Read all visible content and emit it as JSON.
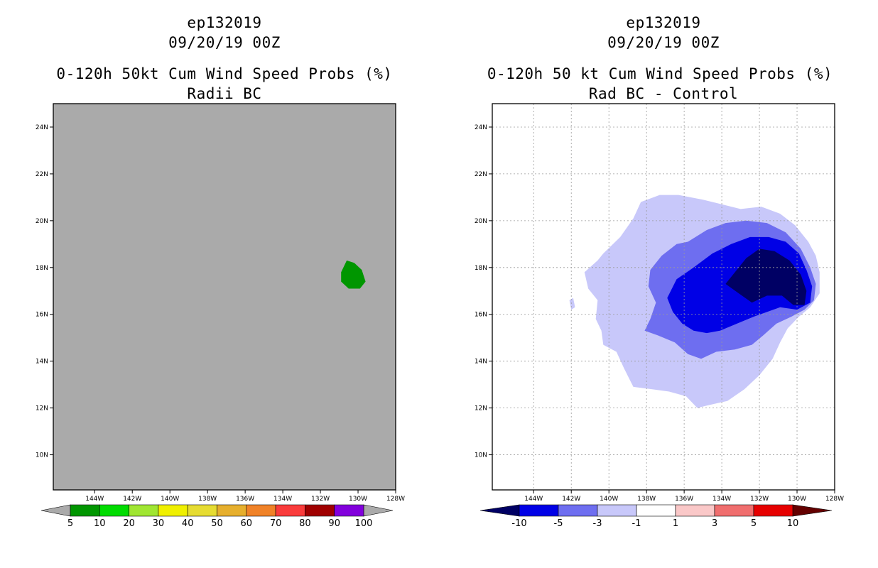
{
  "chart_data": [
    {
      "type": "heatmap",
      "id": "left",
      "title_lines": [
        "ep132019",
        "09/20/19 00Z",
        "0-120h 50kt Cum Wind Speed Probs (%)",
        "Radii BC"
      ],
      "x_ticks": [
        "144W",
        "142W",
        "140W",
        "138W",
        "136W",
        "134W",
        "132W",
        "130W",
        "128W"
      ],
      "y_ticks": [
        "24N",
        "22N",
        "20N",
        "18N",
        "16N",
        "14N",
        "12N",
        "10N"
      ],
      "xlim": [
        -146.2,
        -128
      ],
      "ylim": [
        8.5,
        25
      ],
      "grid": false,
      "background_color": "#aaaaaa",
      "colorbar": {
        "labels": [
          "5",
          "10",
          "20",
          "30",
          "40",
          "50",
          "60",
          "70",
          "80",
          "90",
          "100"
        ],
        "colors": [
          "#009600",
          "#00dc00",
          "#a0e632",
          "#f0f000",
          "#e6dc32",
          "#e6af2d",
          "#f08228",
          "#fa3c3c",
          "#a00000",
          "#8200dc"
        ],
        "under_color": "#aaaaaa",
        "over_color": "#aaaaaa"
      },
      "regions": [
        {
          "color": "#009600",
          "level": "5-10",
          "points": [
            [
              -130.9,
              17.8
            ],
            [
              -130.6,
              18.3
            ],
            [
              -130.2,
              18.2
            ],
            [
              -129.8,
              17.9
            ],
            [
              -129.6,
              17.4
            ],
            [
              -129.9,
              17.1
            ],
            [
              -130.5,
              17.1
            ],
            [
              -130.9,
              17.4
            ]
          ]
        }
      ]
    },
    {
      "type": "heatmap",
      "id": "right",
      "title_lines": [
        "ep132019",
        "09/20/19 00Z",
        "0-120h 50 kt Cum Wind Speed Probs (%)",
        "Rad BC - Control"
      ],
      "x_ticks": [
        "144W",
        "142W",
        "140W",
        "138W",
        "136W",
        "134W",
        "132W",
        "130W",
        "128W"
      ],
      "y_ticks": [
        "24N",
        "22N",
        "20N",
        "18N",
        "16N",
        "14N",
        "12N",
        "10N"
      ],
      "xlim": [
        -146.2,
        -128
      ],
      "ylim": [
        8.5,
        25
      ],
      "grid": true,
      "background_color": "#ffffff",
      "colorbar": {
        "labels": [
          "-10",
          "-5",
          "-3",
          "-1",
          "1",
          "3",
          "5",
          "10"
        ],
        "colors": [
          "#0000e6",
          "#6e6ef0",
          "#c8c8fa",
          "#ffffff",
          "#fac8c8",
          "#f06e6e",
          "#e60000"
        ],
        "under_color": "#000064",
        "over_color": "#640000"
      },
      "regions": [
        {
          "color": "#c8c8fa",
          "level": "-3 to -1",
          "points": [
            [
              -138.3,
              20.8
            ],
            [
              -137.3,
              21.1
            ],
            [
              -136.3,
              21.1
            ],
            [
              -135,
              20.9
            ],
            [
              -134,
              20.7
            ],
            [
              -133,
              20.5
            ],
            [
              -131.9,
              20.6
            ],
            [
              -130.9,
              20.3
            ],
            [
              -130.1,
              19.8
            ],
            [
              -129.4,
              19.1
            ],
            [
              -129,
              18.5
            ],
            [
              -128.8,
              17.8
            ],
            [
              -128.8,
              16.9
            ],
            [
              -129.3,
              16.3
            ],
            [
              -129.9,
              15.9
            ],
            [
              -130.5,
              15.4
            ],
            [
              -130.9,
              14.8
            ],
            [
              -131.3,
              14.1
            ],
            [
              -132,
              13.4
            ],
            [
              -132.8,
              12.8
            ],
            [
              -133.7,
              12.3
            ],
            [
              -134.8,
              12.1
            ],
            [
              -135.3,
              12.0
            ],
            [
              -135.9,
              12.5
            ],
            [
              -136.8,
              12.7
            ],
            [
              -137.7,
              12.8
            ],
            [
              -138.7,
              12.9
            ],
            [
              -139.2,
              13.7
            ],
            [
              -139.6,
              14.4
            ],
            [
              -140.3,
              14.7
            ],
            [
              -140.4,
              15.3
            ],
            [
              -140.7,
              15.8
            ],
            [
              -140.6,
              16.6
            ],
            [
              -141.1,
              17.1
            ],
            [
              -141.3,
              17.8
            ],
            [
              -140.6,
              18.3
            ],
            [
              -140.3,
              18.6
            ],
            [
              -139.4,
              19.3
            ],
            [
              -138.7,
              20.1
            ]
          ]
        },
        {
          "color": "#c8c8fa",
          "level": "-3 to -1",
          "points": [
            [
              -142.1,
              16.6
            ],
            [
              -141.9,
              16.7
            ],
            [
              -141.8,
              16.3
            ],
            [
              -142.0,
              16.2
            ]
          ]
        },
        {
          "color": "#6e6ef0",
          "level": "-5 to -3",
          "points": [
            [
              -136.4,
              19.0
            ],
            [
              -135.8,
              19.1
            ],
            [
              -134.8,
              19.6
            ],
            [
              -133.8,
              19.9
            ],
            [
              -132.7,
              20.0
            ],
            [
              -131.6,
              19.9
            ],
            [
              -130.6,
              19.5
            ],
            [
              -129.8,
              18.8
            ],
            [
              -129.3,
              18.0
            ],
            [
              -129.0,
              17.3
            ],
            [
              -129.1,
              16.6
            ],
            [
              -129.6,
              16.2
            ],
            [
              -130.3,
              15.9
            ],
            [
              -131.1,
              15.6
            ],
            [
              -131.8,
              15.1
            ],
            [
              -132.4,
              14.7
            ],
            [
              -133.3,
              14.5
            ],
            [
              -134.3,
              14.4
            ],
            [
              -135.1,
              14.1
            ],
            [
              -135.8,
              14.3
            ],
            [
              -136.5,
              14.8
            ],
            [
              -137.4,
              15.1
            ],
            [
              -138.1,
              15.3
            ],
            [
              -137.8,
              15.8
            ],
            [
              -137.5,
              16.5
            ],
            [
              -137.9,
              17.2
            ],
            [
              -137.8,
              17.9
            ],
            [
              -137.2,
              18.5
            ]
          ]
        },
        {
          "color": "#0000e6",
          "level": "-10 to -5",
          "points": [
            [
              -136.4,
              17.5
            ],
            [
              -135.5,
              18.0
            ],
            [
              -134.5,
              18.6
            ],
            [
              -133.5,
              19.0
            ],
            [
              -132.5,
              19.3
            ],
            [
              -131.5,
              19.3
            ],
            [
              -130.6,
              19.1
            ],
            [
              -129.9,
              18.6
            ],
            [
              -129.5,
              17.9
            ],
            [
              -129.2,
              17.2
            ],
            [
              -129.3,
              16.5
            ],
            [
              -130.0,
              16.2
            ],
            [
              -130.9,
              16.3
            ],
            [
              -131.6,
              16.1
            ],
            [
              -132.3,
              15.9
            ],
            [
              -133.2,
              15.6
            ],
            [
              -134.1,
              15.3
            ],
            [
              -134.8,
              15.2
            ],
            [
              -135.5,
              15.3
            ],
            [
              -136.1,
              15.6
            ],
            [
              -136.6,
              16.1
            ],
            [
              -136.9,
              16.7
            ]
          ]
        },
        {
          "color": "#000064",
          "level": "< -10",
          "points": [
            [
              -133.8,
              17.3
            ],
            [
              -132.7,
              18.4
            ],
            [
              -132.0,
              18.8
            ],
            [
              -131.2,
              18.7
            ],
            [
              -130.4,
              18.3
            ],
            [
              -129.8,
              17.7
            ],
            [
              -129.5,
              17.0
            ],
            [
              -129.6,
              16.4
            ],
            [
              -130.2,
              16.4
            ],
            [
              -130.8,
              16.8
            ],
            [
              -131.6,
              16.8
            ],
            [
              -132.4,
              16.5
            ],
            [
              -133.1,
              16.9
            ]
          ]
        }
      ]
    }
  ]
}
